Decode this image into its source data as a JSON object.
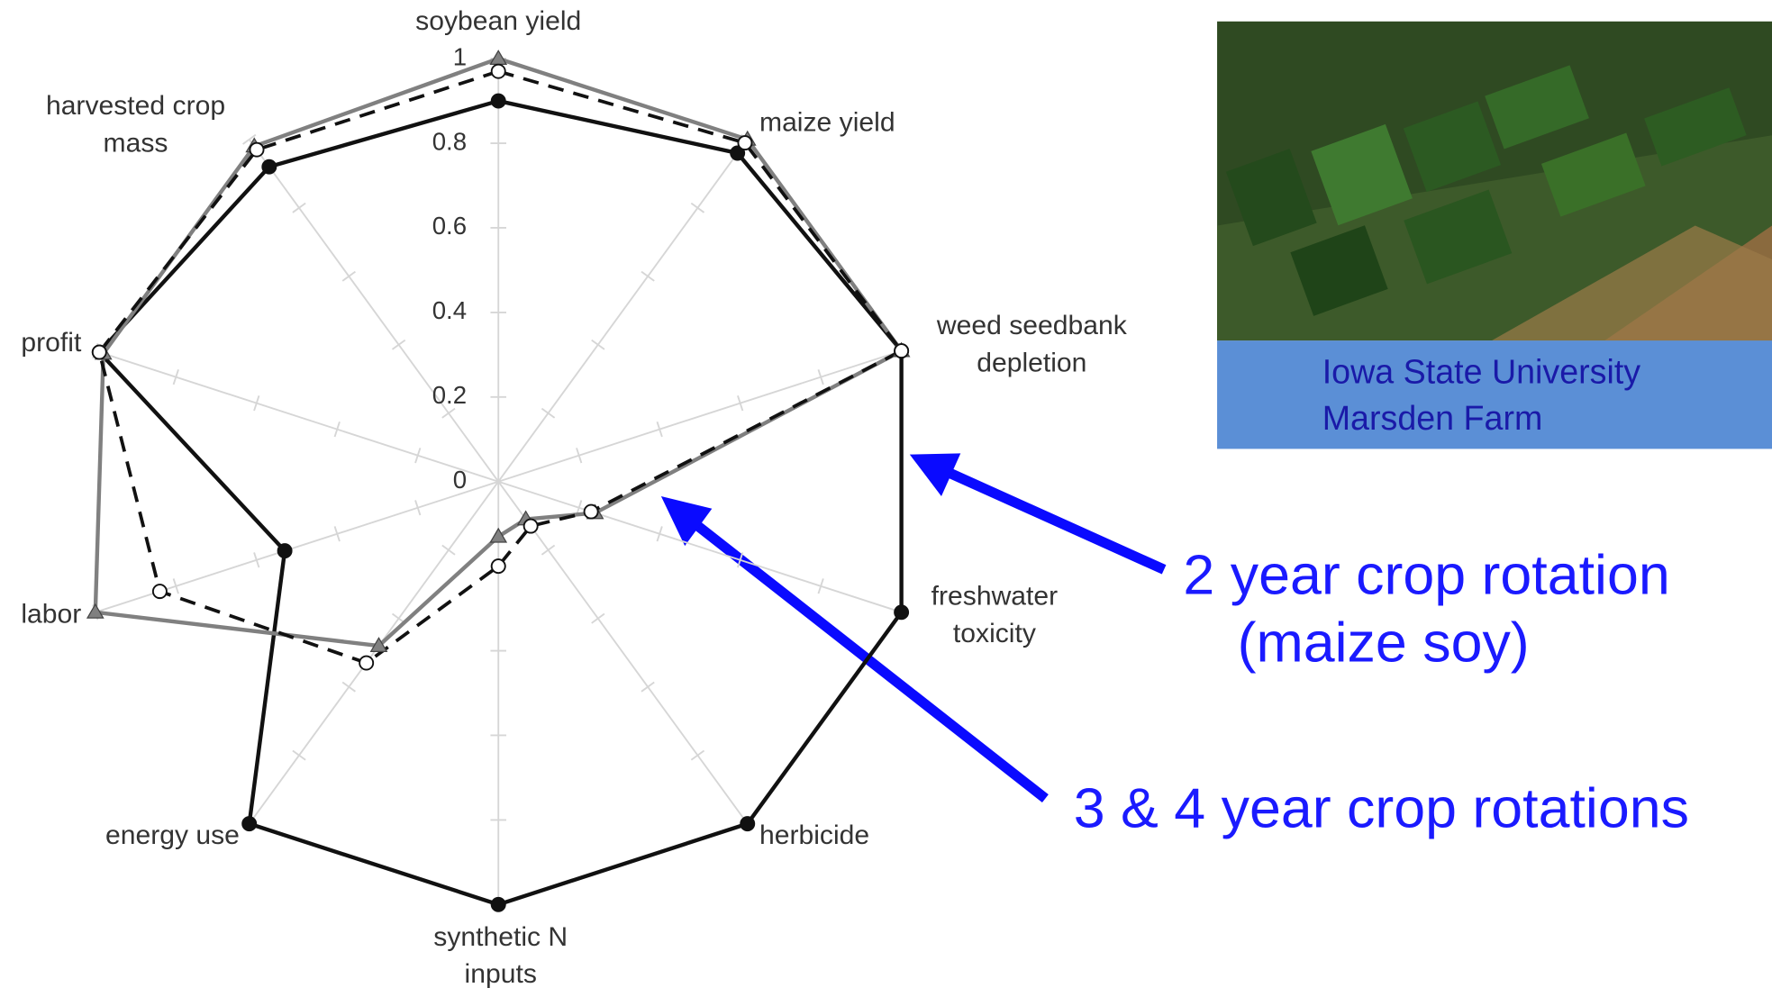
{
  "chart_data": {
    "type": "radar",
    "categories": [
      "soybean yield",
      "maize yield",
      "weed seedbank\ndepletion",
      "freshwater\ntoxicity",
      "herbicide",
      "synthetic N\ninputs",
      "energy use",
      "labor",
      "profit",
      "harvested crop\nmass"
    ],
    "rlim": [
      0,
      1
    ],
    "rticks": [
      0,
      0.2,
      0.4,
      0.6,
      0.8,
      1
    ],
    "series": [
      {
        "color": "#111111",
        "marker": "filled-circle",
        "dash": false,
        "values": [
          0.9,
          0.96,
          1,
          1,
          1,
          1,
          1,
          0.53,
          0.99,
          0.92
        ]
      },
      {
        "color": "#808080",
        "marker": "triangle",
        "dash": false,
        "values": [
          1,
          1,
          1,
          0.24,
          0.11,
          0.13,
          0.48,
          1,
          0.98,
          0.98
        ]
      },
      {
        "color": "#111111",
        "marker": "open-circle",
        "dash": true,
        "values": [
          0.97,
          0.99,
          1,
          0.23,
          0.13,
          0.2,
          0.53,
          0.84,
          0.99,
          0.97
        ]
      }
    ],
    "annotations": [
      "2 year crop rotation\n(maize soy)",
      "3 & 4 year crop rotations"
    ],
    "photo_caption": "Iowa State University\nMarsden Farm"
  }
}
